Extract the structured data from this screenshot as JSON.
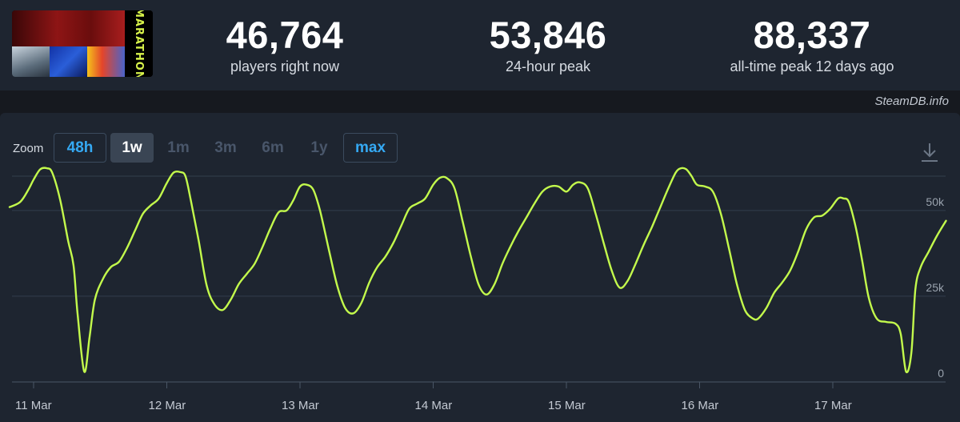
{
  "header": {
    "game_logo_text": "MARATHON",
    "stats": [
      {
        "value": "46,764",
        "label": "players right now"
      },
      {
        "value": "53,846",
        "label": "24-hour peak"
      },
      {
        "value": "88,337",
        "label": "all-time peak 12 days ago"
      }
    ],
    "credit": "SteamDB.info"
  },
  "zoom": {
    "label": "Zoom",
    "options": [
      {
        "label": "48h",
        "state": "active"
      },
      {
        "label": "1w",
        "state": "selected"
      },
      {
        "label": "1m",
        "state": "disabled"
      },
      {
        "label": "3m",
        "state": "disabled"
      },
      {
        "label": "6m",
        "state": "disabled"
      },
      {
        "label": "1y",
        "state": "disabled"
      },
      {
        "label": "max",
        "state": "active"
      }
    ],
    "download_icon": "download-icon"
  },
  "chart_data": {
    "type": "line",
    "xlabel": "",
    "ylabel": "",
    "x_unit": "days since 11 Mar 00:00",
    "xlim": [
      -0.18,
      6.85
    ],
    "ylim": [
      0,
      60000
    ],
    "y_ticks": [
      {
        "value": 0,
        "label": "0"
      },
      {
        "value": 25000,
        "label": "25k"
      },
      {
        "value": 50000,
        "label": "50k"
      }
    ],
    "x_ticks": [
      {
        "value": 0,
        "label": "11 Mar"
      },
      {
        "value": 1,
        "label": "12 Mar"
      },
      {
        "value": 2,
        "label": "13 Mar"
      },
      {
        "value": 3,
        "label": "14 Mar"
      },
      {
        "value": 4,
        "label": "15 Mar"
      },
      {
        "value": 5,
        "label": "16 Mar"
      },
      {
        "value": 6,
        "label": "17 Mar"
      }
    ],
    "grid": true,
    "colors": {
      "line": "#c3fa4c",
      "grid": "#333e4c",
      "axis": "#4a5666"
    },
    "series": [
      {
        "name": "",
        "points": [
          [
            -0.18,
            51000
          ],
          [
            -0.1,
            52500
          ],
          [
            -0.04,
            56000
          ],
          [
            0.0,
            59000
          ],
          [
            0.05,
            62000
          ],
          [
            0.1,
            62300
          ],
          [
            0.14,
            61000
          ],
          [
            0.2,
            53000
          ],
          [
            0.26,
            41000
          ],
          [
            0.3,
            34000
          ],
          [
            0.33,
            20000
          ],
          [
            0.38,
            3000
          ],
          [
            0.42,
            13000
          ],
          [
            0.46,
            24000
          ],
          [
            0.52,
            30000
          ],
          [
            0.58,
            33500
          ],
          [
            0.64,
            35000
          ],
          [
            0.7,
            39000
          ],
          [
            0.76,
            44000
          ],
          [
            0.82,
            49000
          ],
          [
            0.88,
            51500
          ],
          [
            0.94,
            53500
          ],
          [
            1.0,
            58000
          ],
          [
            1.05,
            61000
          ],
          [
            1.1,
            61200
          ],
          [
            1.14,
            60000
          ],
          [
            1.18,
            53000
          ],
          [
            1.24,
            41000
          ],
          [
            1.3,
            28000
          ],
          [
            1.36,
            22500
          ],
          [
            1.42,
            21000
          ],
          [
            1.48,
            24000
          ],
          [
            1.54,
            28500
          ],
          [
            1.6,
            31500
          ],
          [
            1.66,
            34500
          ],
          [
            1.72,
            39500
          ],
          [
            1.78,
            45000
          ],
          [
            1.84,
            49500
          ],
          [
            1.9,
            50000
          ],
          [
            1.95,
            53000
          ],
          [
            2.0,
            57000
          ],
          [
            2.05,
            57500
          ],
          [
            2.1,
            56000
          ],
          [
            2.15,
            50000
          ],
          [
            2.22,
            38000
          ],
          [
            2.28,
            28000
          ],
          [
            2.34,
            21500
          ],
          [
            2.4,
            20000
          ],
          [
            2.46,
            23000
          ],
          [
            2.52,
            29000
          ],
          [
            2.58,
            33500
          ],
          [
            2.64,
            36500
          ],
          [
            2.7,
            40500
          ],
          [
            2.76,
            45500
          ],
          [
            2.82,
            50500
          ],
          [
            2.88,
            52000
          ],
          [
            2.94,
            53500
          ],
          [
            3.0,
            57500
          ],
          [
            3.05,
            59500
          ],
          [
            3.1,
            59500
          ],
          [
            3.16,
            56500
          ],
          [
            3.22,
            47000
          ],
          [
            3.28,
            37000
          ],
          [
            3.34,
            28500
          ],
          [
            3.4,
            25500
          ],
          [
            3.46,
            28500
          ],
          [
            3.52,
            34500
          ],
          [
            3.58,
            39500
          ],
          [
            3.64,
            44000
          ],
          [
            3.7,
            48000
          ],
          [
            3.76,
            52000
          ],
          [
            3.82,
            55500
          ],
          [
            3.88,
            57000
          ],
          [
            3.94,
            57000
          ],
          [
            4.0,
            55500
          ],
          [
            4.05,
            57500
          ],
          [
            4.1,
            58200
          ],
          [
            4.16,
            56500
          ],
          [
            4.22,
            49000
          ],
          [
            4.28,
            40500
          ],
          [
            4.34,
            32500
          ],
          [
            4.4,
            27500
          ],
          [
            4.46,
            29500
          ],
          [
            4.52,
            34500
          ],
          [
            4.58,
            40000
          ],
          [
            4.64,
            45000
          ],
          [
            4.7,
            50500
          ],
          [
            4.76,
            56000
          ],
          [
            4.82,
            61000
          ],
          [
            4.86,
            62300
          ],
          [
            4.9,
            62000
          ],
          [
            4.94,
            60000
          ],
          [
            4.98,
            57500
          ],
          [
            5.04,
            57000
          ],
          [
            5.1,
            55500
          ],
          [
            5.16,
            49000
          ],
          [
            5.22,
            39000
          ],
          [
            5.28,
            28500
          ],
          [
            5.34,
            21000
          ],
          [
            5.4,
            18500
          ],
          [
            5.44,
            18500
          ],
          [
            5.5,
            21500
          ],
          [
            5.56,
            26000
          ],
          [
            5.62,
            29000
          ],
          [
            5.68,
            32500
          ],
          [
            5.74,
            38000
          ],
          [
            5.8,
            44500
          ],
          [
            5.86,
            48000
          ],
          [
            5.92,
            48500
          ],
          [
            5.98,
            50500
          ],
          [
            6.04,
            53500
          ],
          [
            6.08,
            53500
          ],
          [
            6.12,
            52500
          ],
          [
            6.17,
            45500
          ],
          [
            6.22,
            35500
          ],
          [
            6.27,
            24500
          ],
          [
            6.33,
            18500
          ],
          [
            6.4,
            17500
          ],
          [
            6.47,
            17000
          ],
          [
            6.51,
            14000
          ],
          [
            6.55,
            3000
          ],
          [
            6.59,
            8500
          ],
          [
            6.62,
            27000
          ],
          [
            6.66,
            33500
          ],
          [
            6.72,
            38000
          ],
          [
            6.78,
            42500
          ],
          [
            6.85,
            47000
          ]
        ]
      }
    ]
  }
}
